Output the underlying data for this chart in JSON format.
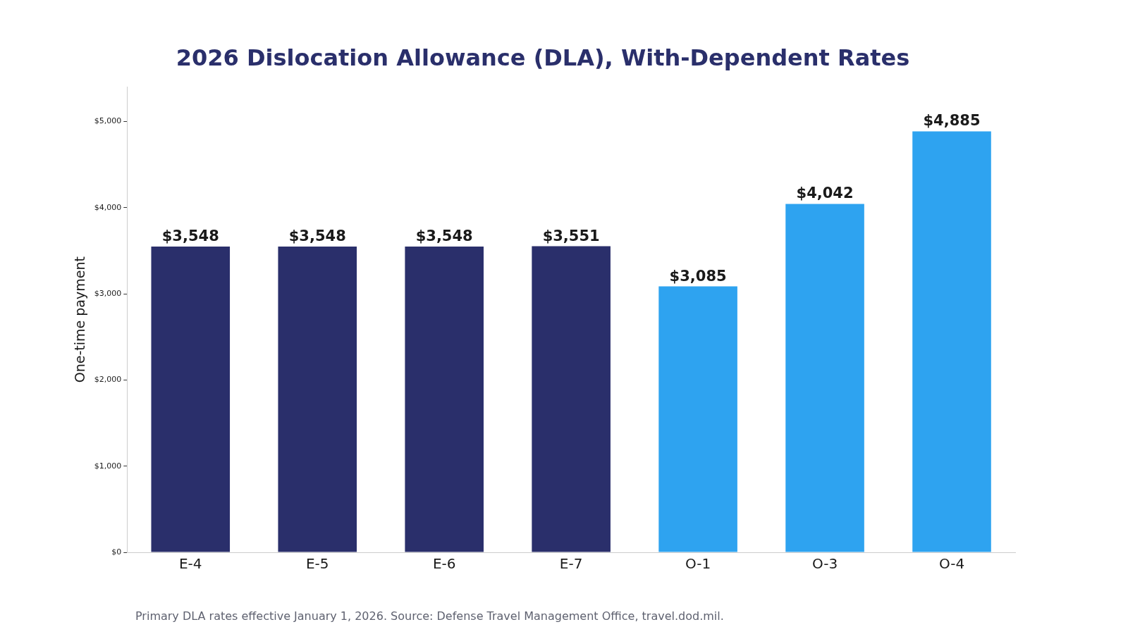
{
  "chart_data": {
    "type": "bar",
    "title": "2026 Dislocation Allowance (DLA), With-Dependent Rates",
    "ylabel": "One-time payment",
    "categories": [
      "E-4",
      "E-5",
      "E-6",
      "E-7",
      "O-1",
      "O-3",
      "O-4"
    ],
    "values": [
      3548,
      3548,
      3548,
      3551,
      3085,
      4042,
      4885
    ],
    "colors": [
      "#2a2f6b",
      "#2a2f6b",
      "#2a2f6b",
      "#2a2f6b",
      "#2ea3f0",
      "#2ea3f0",
      "#2ea3f0"
    ],
    "value_labels": [
      "$3,548",
      "$3,548",
      "$3,548",
      "$3,551",
      "$3,085",
      "$4,042",
      "$4,885"
    ],
    "ylim": [
      0,
      5400
    ],
    "yticks": [
      {
        "value": 0,
        "label": "$0"
      },
      {
        "value": 1000,
        "label": "$1,000"
      },
      {
        "value": 2000,
        "label": "$2,000"
      },
      {
        "value": 3000,
        "label": "$3,000"
      },
      {
        "value": 4000,
        "label": "$4,000"
      },
      {
        "value": 5000,
        "label": "$5,000"
      }
    ],
    "grid": false,
    "legend": false,
    "annotations": [
      "Primary DLA rates effective January 1, 2026. Source: Defense Travel Management Office, travel.dod.mil."
    ]
  }
}
